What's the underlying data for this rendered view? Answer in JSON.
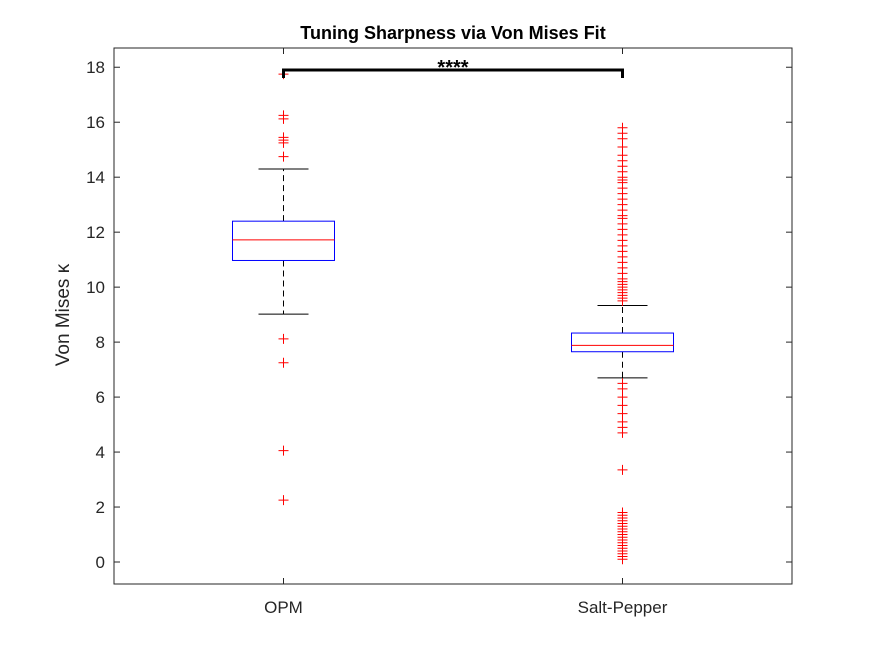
{
  "chart_data": {
    "type": "box",
    "title": "Tuning Sharpness via Von Mises Fit",
    "xlabel": "",
    "ylabel": "Von Mises κ",
    "ylim": [
      -0.8,
      18.7
    ],
    "yticks": [
      0,
      2,
      4,
      6,
      8,
      10,
      12,
      14,
      16,
      18
    ],
    "grid": false,
    "categories": [
      "OPM",
      "Salt-Pepper"
    ],
    "boxes": [
      {
        "category": "OPM",
        "q1": 10.97,
        "median": 11.72,
        "q3": 12.4,
        "whisker_low": 9.02,
        "whisker_high": 14.3,
        "outliers": [
          17.75,
          16.25,
          16.12,
          15.45,
          15.35,
          15.25,
          14.75,
          8.12,
          7.25,
          4.05,
          2.25
        ]
      },
      {
        "category": "Salt-Pepper",
        "q1": 7.65,
        "median": 7.88,
        "q3": 8.33,
        "whisker_low": 6.7,
        "whisker_high": 9.33,
        "outliers": [
          15.8,
          15.6,
          15.4,
          15.1,
          14.8,
          14.6,
          14.4,
          14.2,
          14.0,
          13.9,
          13.8,
          13.6,
          13.4,
          13.2,
          13.0,
          12.8,
          12.6,
          12.5,
          12.3,
          12.1,
          11.9,
          11.7,
          11.5,
          11.3,
          11.1,
          10.9,
          10.7,
          10.5,
          10.3,
          10.2,
          10.1,
          10.0,
          9.9,
          9.8,
          9.7,
          9.6,
          9.5,
          6.5,
          6.3,
          6.0,
          5.7,
          5.4,
          5.1,
          4.9,
          4.7,
          3.35,
          1.8,
          1.7,
          1.6,
          1.5,
          1.4,
          1.3,
          1.2,
          1.1,
          1.0,
          0.9,
          0.8,
          0.7,
          0.6,
          0.5,
          0.4,
          0.3,
          0.2,
          0.1
        ]
      }
    ],
    "significance": {
      "label": "****",
      "y": 17.9
    },
    "colors": {
      "box": "#0000ff",
      "median": "#ff0000",
      "whisker": "#000000",
      "outlier": "#ff0000",
      "axis": "#262626"
    }
  }
}
